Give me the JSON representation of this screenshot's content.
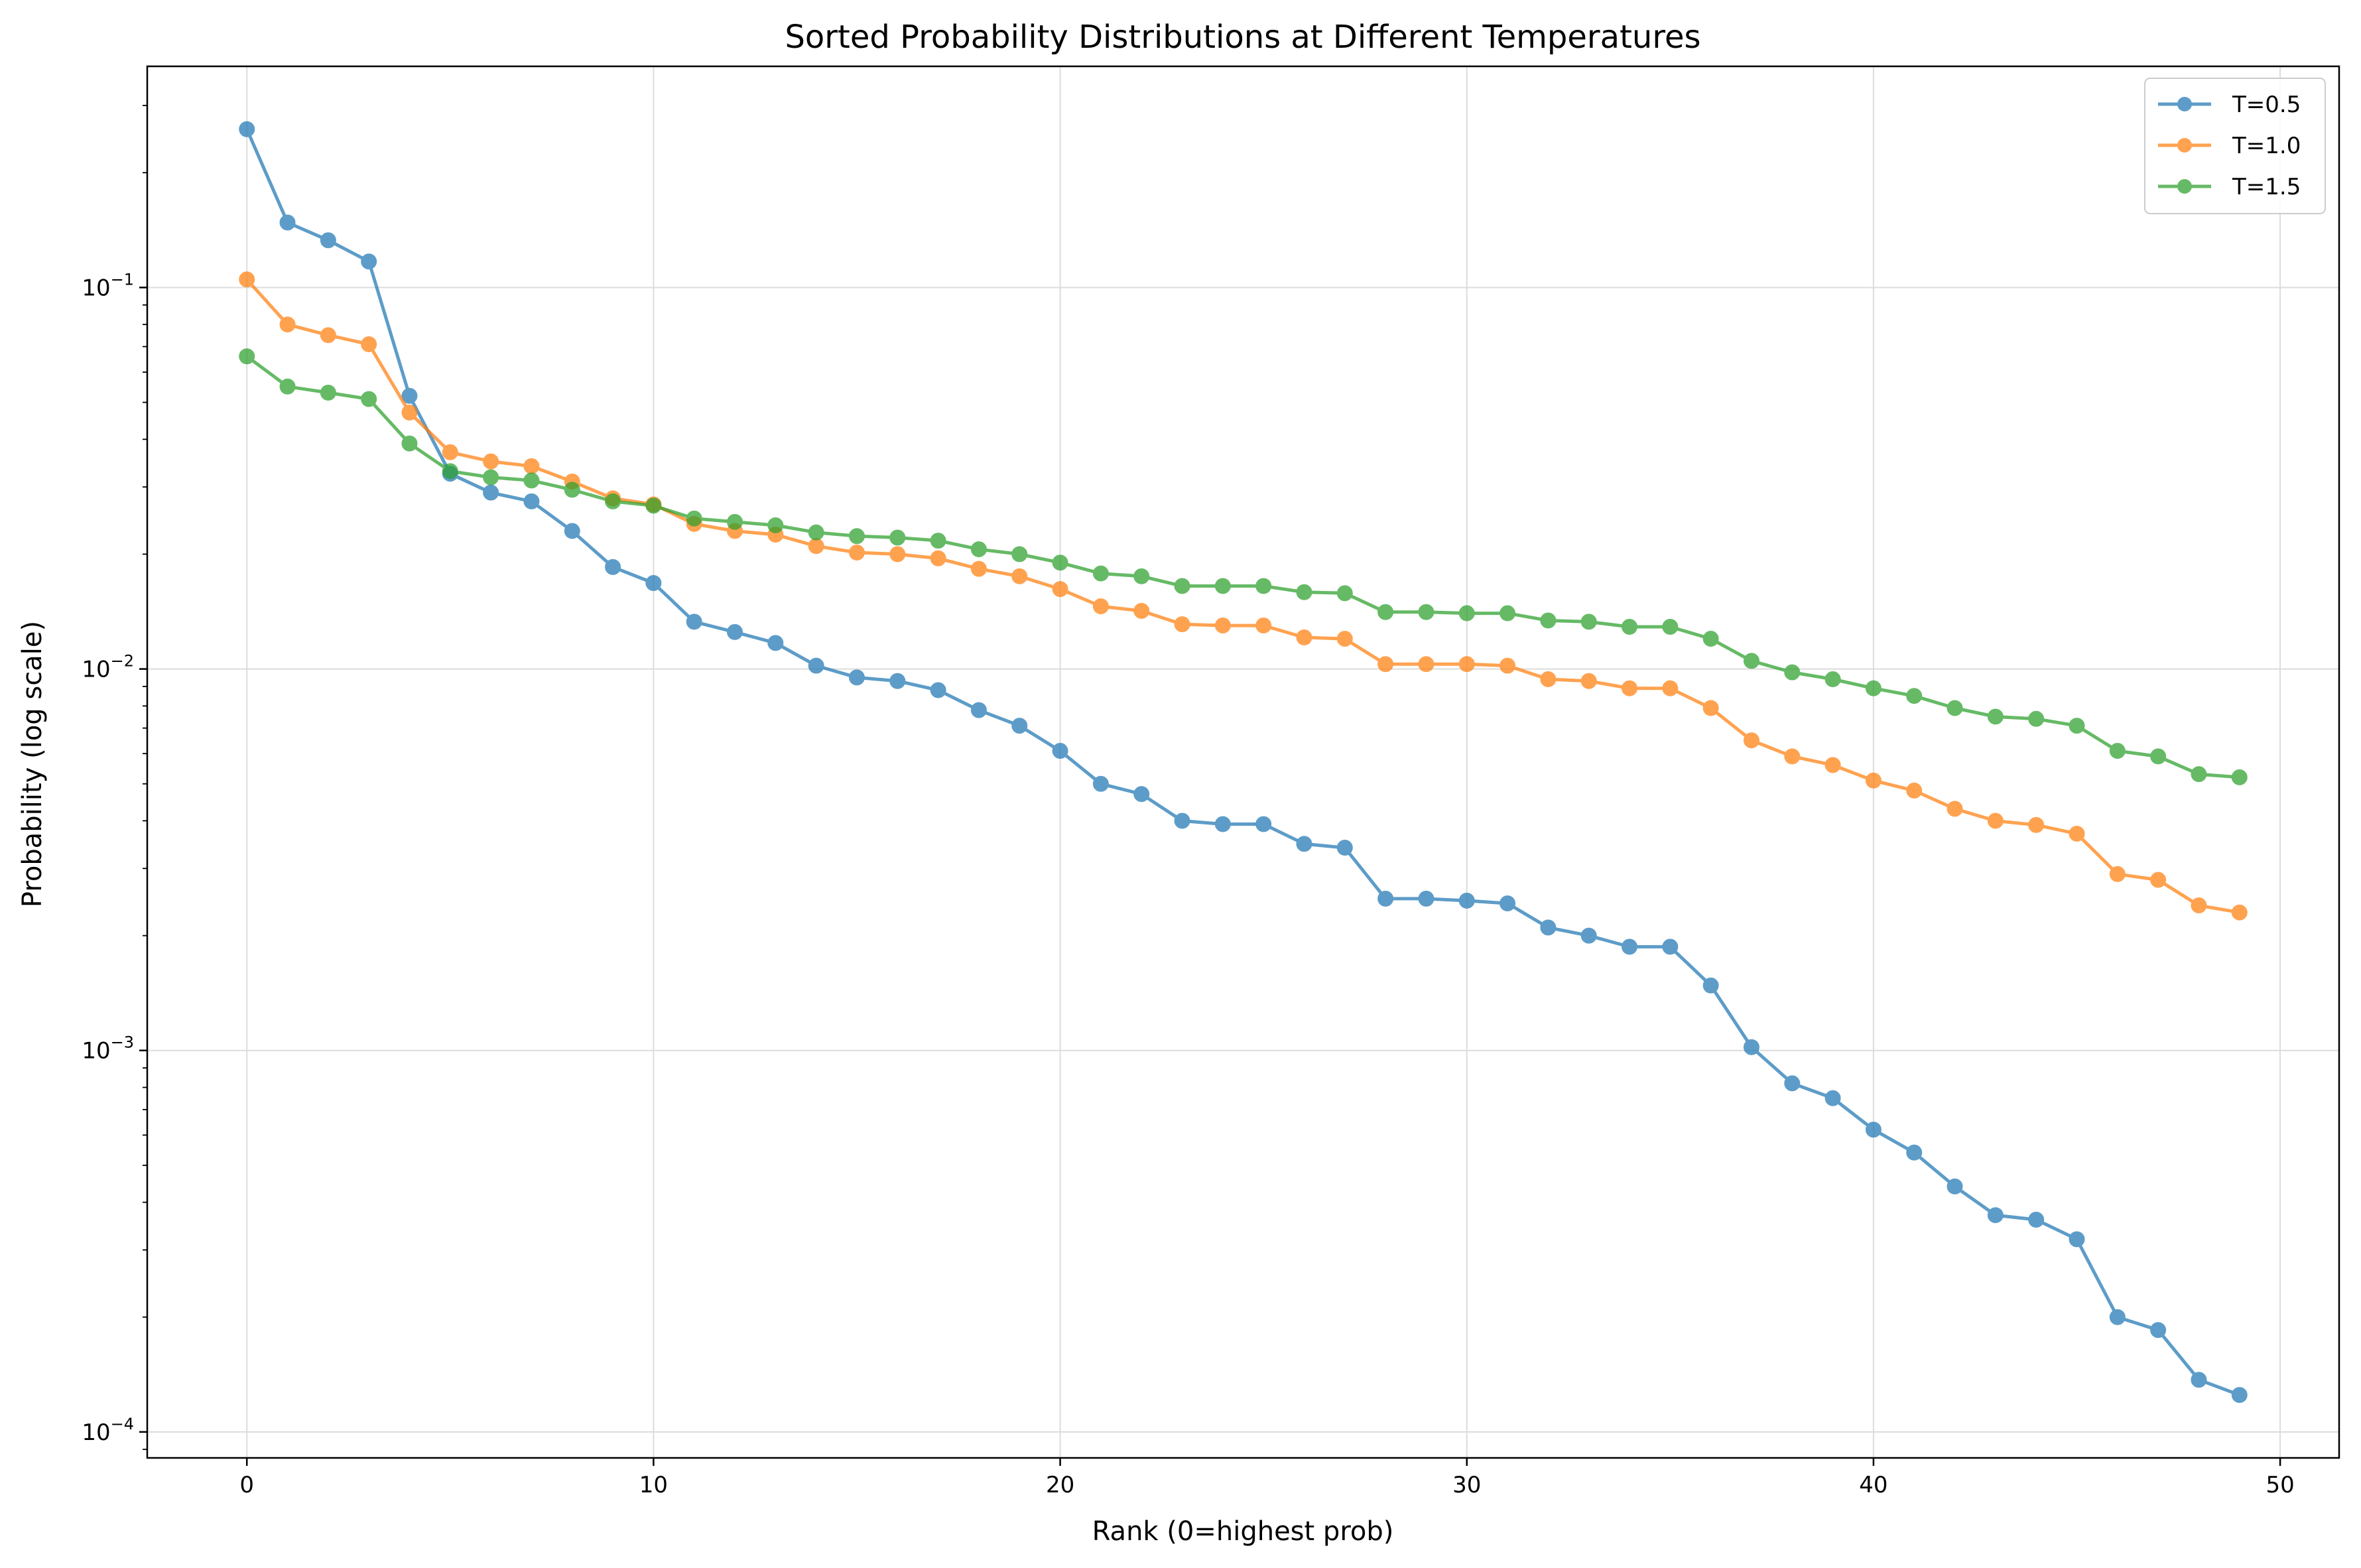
{
  "chart_data": {
    "type": "line",
    "title": "Sorted Probability Distributions at Different Temperatures",
    "xlabel": "Rank (0=highest prob)",
    "ylabel": "Probability (log scale)",
    "yscale": "log",
    "xlim": [
      -2.45,
      51.45
    ],
    "ylim": [
      8.55e-05,
      0.38
    ],
    "grid": true,
    "legend_position": "top-right",
    "x_ticks": [
      0,
      10,
      20,
      30,
      40,
      50
    ],
    "x_tick_labels": [
      "0",
      "10",
      "20",
      "30",
      "40",
      "50"
    ],
    "y_ticks": [
      0.0001,
      0.001,
      0.01,
      0.1
    ],
    "y_tick_labels": [
      {
        "base": "10",
        "exp": "−4"
      },
      {
        "base": "10",
        "exp": "−3"
      },
      {
        "base": "10",
        "exp": "−2"
      },
      {
        "base": "10",
        "exp": "−1"
      }
    ],
    "x": [
      0,
      1,
      2,
      3,
      4,
      5,
      6,
      7,
      8,
      9,
      10,
      11,
      12,
      13,
      14,
      15,
      16,
      17,
      18,
      19,
      20,
      21,
      22,
      23,
      24,
      25,
      26,
      27,
      28,
      29,
      30,
      31,
      32,
      33,
      34,
      35,
      36,
      37,
      38,
      39,
      40,
      41,
      42,
      43,
      44,
      45,
      46,
      47,
      48,
      49
    ],
    "series": [
      {
        "name": "T=0.5",
        "color": "#1f77b4",
        "values": [
          0.26,
          0.148,
          0.133,
          0.117,
          0.052,
          0.0325,
          0.029,
          0.0275,
          0.023,
          0.0185,
          0.0168,
          0.0133,
          0.0125,
          0.0117,
          0.0102,
          0.0095,
          0.0093,
          0.0088,
          0.0078,
          0.0071,
          0.0061,
          0.005,
          0.0047,
          0.004,
          0.00392,
          0.00392,
          0.00348,
          0.0034,
          0.0025,
          0.0025,
          0.00247,
          0.00243,
          0.0021,
          0.002,
          0.00187,
          0.00187,
          0.00148,
          0.00102,
          0.00082,
          0.00075,
          0.00062,
          0.00054,
          0.00044,
          0.00037,
          0.00036,
          0.00032,
          0.0002,
          0.000185,
          0.000137,
          0.000125
        ]
      },
      {
        "name": "T=1.0",
        "color": "#ff7f0e",
        "values": [
          0.105,
          0.08,
          0.075,
          0.071,
          0.047,
          0.037,
          0.035,
          0.034,
          0.031,
          0.028,
          0.027,
          0.024,
          0.023,
          0.0225,
          0.021,
          0.0202,
          0.02,
          0.0195,
          0.0183,
          0.0175,
          0.0162,
          0.0146,
          0.0142,
          0.0131,
          0.013,
          0.013,
          0.0121,
          0.012,
          0.0103,
          0.0103,
          0.0103,
          0.0102,
          0.0094,
          0.0093,
          0.0089,
          0.0089,
          0.0079,
          0.0065,
          0.0059,
          0.0056,
          0.0051,
          0.0048,
          0.0043,
          0.004,
          0.0039,
          0.0037,
          0.0029,
          0.0028,
          0.0024,
          0.0023
        ]
      },
      {
        "name": "T=1.5",
        "color": "#2ca02c",
        "values": [
          0.066,
          0.055,
          0.053,
          0.051,
          0.039,
          0.033,
          0.0318,
          0.0312,
          0.0295,
          0.0275,
          0.0268,
          0.0248,
          0.0243,
          0.0238,
          0.0228,
          0.0223,
          0.0221,
          0.0217,
          0.0206,
          0.02,
          0.019,
          0.0178,
          0.0175,
          0.0165,
          0.0165,
          0.0165,
          0.0159,
          0.0158,
          0.0141,
          0.0141,
          0.014,
          0.014,
          0.0134,
          0.0133,
          0.0129,
          0.0129,
          0.012,
          0.0105,
          0.0098,
          0.0094,
          0.0089,
          0.0085,
          0.0079,
          0.0075,
          0.0074,
          0.0071,
          0.0061,
          0.0059,
          0.0053,
          0.0052
        ]
      }
    ]
  }
}
